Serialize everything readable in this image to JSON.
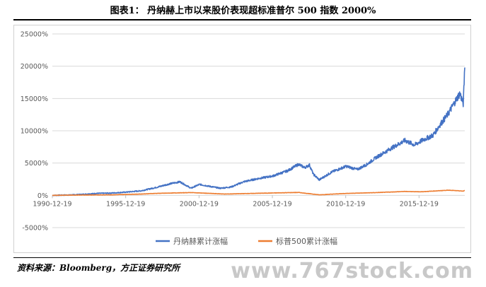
{
  "figure": {
    "title": "图表1： 丹纳赫上市以来股价表现超标准普尔 500 指数 2000%",
    "source": "资料来源：Bloomberg，方正证券研究所",
    "watermark": "www.767stock.com"
  },
  "chart_data": {
    "type": "line",
    "title": "",
    "xlabel": "",
    "ylabel": "",
    "x_ticks": [
      "1990-12-19",
      "1995-12-19",
      "2000-12-19",
      "2005-12-19",
      "2010-12-19",
      "2015-12-19"
    ],
    "y_ticks": [
      "-5000%",
      "0%",
      "5000%",
      "10000%",
      "15000%",
      "20000%",
      "25000%"
    ],
    "xlim": [
      "1990-12-19",
      "2019-01-31"
    ],
    "ylim": [
      -5000,
      25000
    ],
    "grid": "horizontal",
    "legend_position": "bottom-center",
    "series": [
      {
        "name": "丹纳赫累计涨幅",
        "color": "#4472C4",
        "points": [
          [
            "1990-12-19",
            0
          ],
          [
            "1992-01-01",
            50
          ],
          [
            "1993-01-01",
            150
          ],
          [
            "1994-01-01",
            300
          ],
          [
            "1995-01-01",
            350
          ],
          [
            "1996-01-01",
            500
          ],
          [
            "1997-01-01",
            700
          ],
          [
            "1998-01-01",
            1200
          ],
          [
            "1999-01-01",
            1800
          ],
          [
            "1999-09-01",
            2100
          ],
          [
            "2000-06-01",
            1100
          ],
          [
            "2001-01-01",
            1700
          ],
          [
            "2001-09-01",
            1400
          ],
          [
            "2002-06-01",
            1100
          ],
          [
            "2003-03-01",
            1300
          ],
          [
            "2004-01-01",
            2100
          ],
          [
            "2005-01-01",
            2600
          ],
          [
            "2006-01-01",
            3000
          ],
          [
            "2007-01-01",
            3800
          ],
          [
            "2007-10-01",
            4800
          ],
          [
            "2008-03-01",
            4300
          ],
          [
            "2008-07-01",
            4700
          ],
          [
            "2008-10-01",
            3300
          ],
          [
            "2009-03-01",
            2400
          ],
          [
            "2010-01-01",
            3600
          ],
          [
            "2011-01-01",
            4500
          ],
          [
            "2011-10-01",
            4000
          ],
          [
            "2012-06-01",
            4800
          ],
          [
            "2013-01-01",
            5800
          ],
          [
            "2014-01-01",
            7200
          ],
          [
            "2015-01-01",
            8500
          ],
          [
            "2015-09-01",
            7800
          ],
          [
            "2016-03-01",
            8500
          ],
          [
            "2016-12-01",
            9300
          ],
          [
            "2017-06-01",
            11000
          ],
          [
            "2017-12-01",
            12500
          ],
          [
            "2018-06-01",
            14500
          ],
          [
            "2018-10-01",
            15800
          ],
          [
            "2018-12-24",
            14200
          ],
          [
            "2019-01-15",
            17500
          ],
          [
            "2019-01-31",
            19800
          ]
        ]
      },
      {
        "name": "标普500累计涨幅",
        "color": "#ED7D31",
        "points": [
          [
            "1990-12-19",
            0
          ],
          [
            "1993-01-01",
            50
          ],
          [
            "1995-01-01",
            80
          ],
          [
            "1997-01-01",
            200
          ],
          [
            "1998-01-01",
            300
          ],
          [
            "2000-06-01",
            430
          ],
          [
            "2002-10-01",
            200
          ],
          [
            "2005-01-01",
            320
          ],
          [
            "2007-10-01",
            450
          ],
          [
            "2009-03-01",
            80
          ],
          [
            "2011-01-01",
            300
          ],
          [
            "2013-01-01",
            420
          ],
          [
            "2015-01-01",
            600
          ],
          [
            "2016-02-01",
            550
          ],
          [
            "2018-01-01",
            800
          ],
          [
            "2018-12-24",
            650
          ],
          [
            "2019-01-31",
            750
          ]
        ]
      }
    ]
  }
}
